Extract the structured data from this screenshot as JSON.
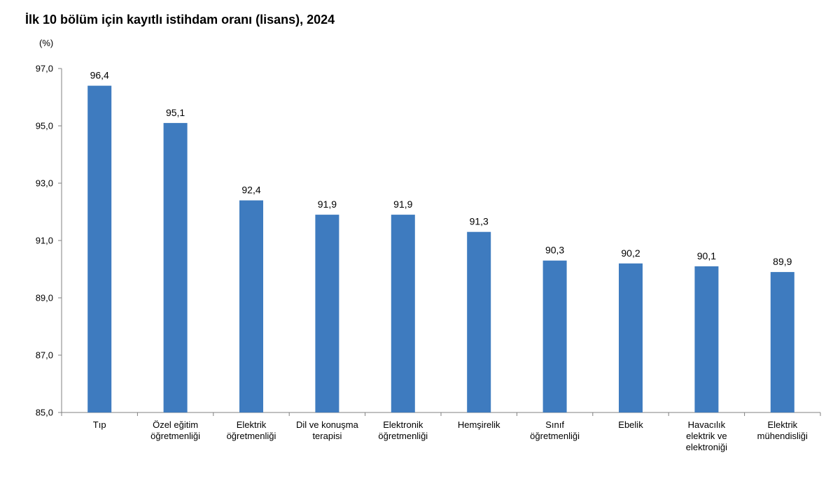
{
  "chart_data": {
    "type": "bar",
    "title": "İlk 10 bölüm için kayıtlı istihdam oranı (lisans), 2024",
    "ylabel": "(%)",
    "xlabel": "",
    "ylim": [
      85.0,
      97.0
    ],
    "yticks": [
      "85,0",
      "87,0",
      "89,0",
      "91,0",
      "93,0",
      "95,0",
      "97,0"
    ],
    "categories": [
      [
        "Tıp"
      ],
      [
        "Özel eğitim",
        "öğretmenliği"
      ],
      [
        "Elektrik",
        "öğretmenliği"
      ],
      [
        "Dil ve konuşma",
        "terapisi"
      ],
      [
        "Elektronik",
        "öğretmenliği"
      ],
      [
        "Hemşirelik"
      ],
      [
        "Sınıf",
        "öğretmenliği"
      ],
      [
        "Ebelik"
      ],
      [
        "Havacılık",
        "elektrik ve",
        "elektroniği"
      ],
      [
        "Elektrik",
        "mühendisliği"
      ]
    ],
    "values": [
      96.4,
      95.1,
      92.4,
      91.9,
      91.9,
      91.3,
      90.3,
      90.2,
      90.1,
      89.9
    ],
    "data_labels": [
      "96,4",
      "95,1",
      "92,4",
      "91,9",
      "91,9",
      "91,3",
      "90,3",
      "90,2",
      "90,1",
      "89,9"
    ],
    "bar_color": "#3e7bbf",
    "grid": false,
    "legend": "none"
  }
}
